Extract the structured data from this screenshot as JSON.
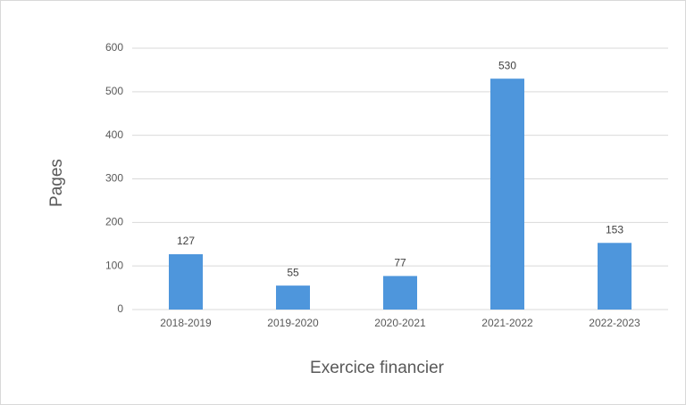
{
  "chart_data": {
    "type": "bar",
    "categories": [
      "2018-2019",
      "2019-2020",
      "2020-2021",
      "2021-2022",
      "2022-2023"
    ],
    "values": [
      127,
      55,
      77,
      530,
      153
    ],
    "color": "#4e96dc",
    "x_label": "Exercice financier",
    "y_label": "Pages",
    "ylim": [
      0,
      600
    ],
    "yticks": [
      0,
      100,
      200,
      300,
      400,
      500,
      600
    ],
    "grid": true
  }
}
